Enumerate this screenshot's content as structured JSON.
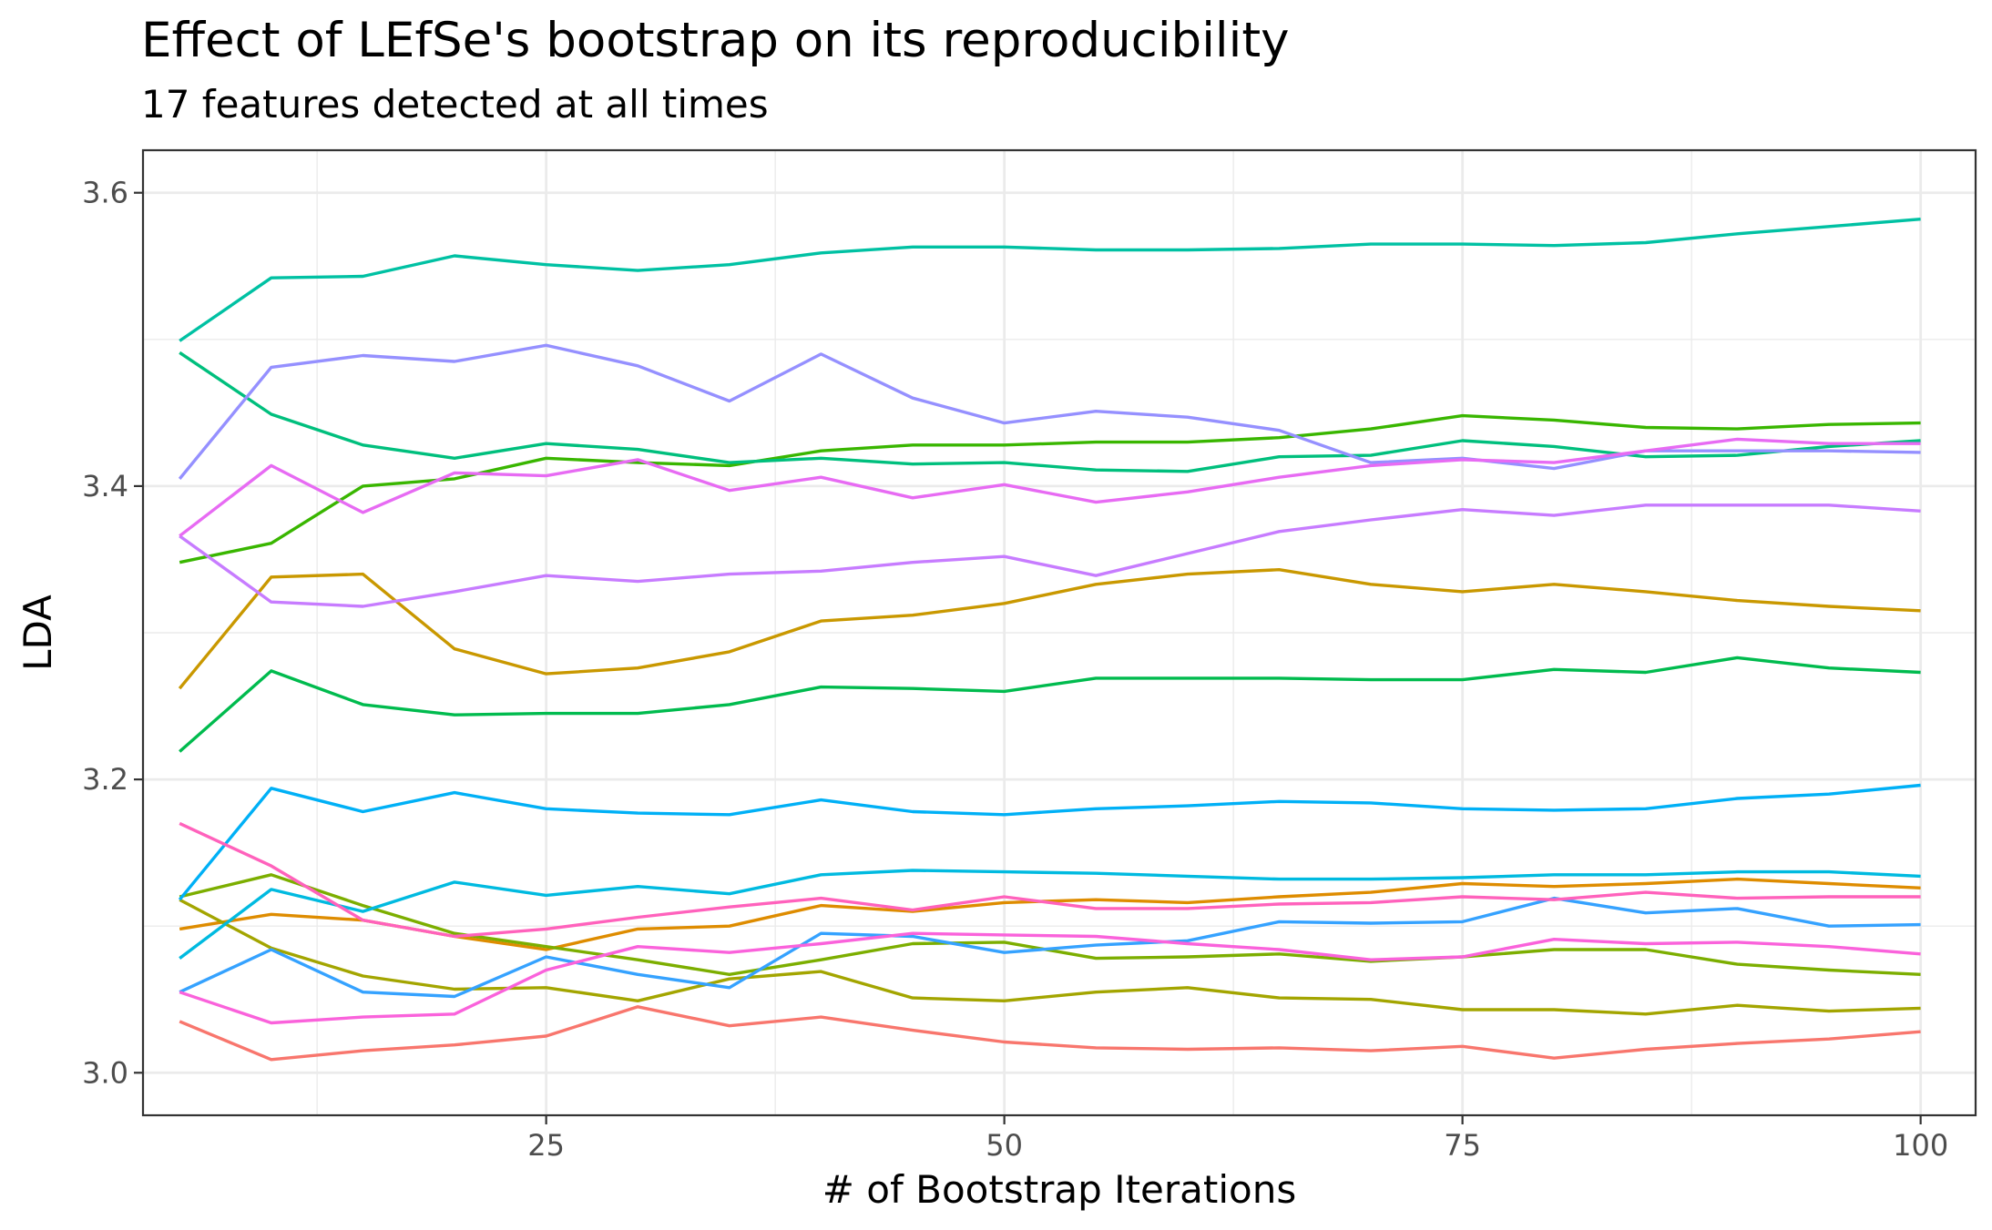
{
  "chart_data": {
    "type": "line",
    "title": "Effect of LEfSe's bootstrap on its reproducibility",
    "subtitle": "17 features detected at all times",
    "xlabel": "# of Bootstrap Iterations",
    "ylabel": "LDA",
    "xlim": [
      3,
      103
    ],
    "ylim": [
      2.971,
      3.629
    ],
    "x_ticks": [
      25,
      50,
      75,
      100
    ],
    "x_minor_ticks": [
      12.5,
      37.5,
      62.5,
      87.5
    ],
    "y_ticks": [
      3.0,
      3.2,
      3.4,
      3.6
    ],
    "y_minor_ticks": [
      3.1,
      3.3,
      3.5
    ],
    "x_tick_labels": [
      "25",
      "50",
      "75",
      "100"
    ],
    "y_tick_labels": [
      "3.0",
      "3.2",
      "3.4",
      "3.6"
    ],
    "grid": true,
    "legend": "none",
    "x": [
      5,
      10,
      15,
      20,
      25,
      30,
      35,
      40,
      45,
      50,
      55,
      60,
      65,
      70,
      75,
      80,
      85,
      90,
      95,
      100
    ],
    "series": [
      {
        "color": "#F8766D",
        "values": [
          3.035,
          3.009,
          3.015,
          3.019,
          3.025,
          3.045,
          3.032,
          3.038,
          3.029,
          3.021,
          3.017,
          3.016,
          3.017,
          3.015,
          3.018,
          3.01,
          3.016,
          3.02,
          3.023,
          3.028
        ]
      },
      {
        "color": "#DE8C00",
        "values": [
          3.098,
          3.108,
          3.104,
          3.093,
          3.084,
          3.098,
          3.1,
          3.114,
          3.11,
          3.116,
          3.118,
          3.116,
          3.12,
          3.123,
          3.129,
          3.127,
          3.129,
          3.132,
          3.129,
          3.126
        ]
      },
      {
        "color": "#C99800",
        "values": [
          3.262,
          3.338,
          3.34,
          3.289,
          3.272,
          3.276,
          3.287,
          3.308,
          3.312,
          3.32,
          3.333,
          3.34,
          3.343,
          3.333,
          3.328,
          3.333,
          3.328,
          3.322,
          3.318,
          3.315
        ]
      },
      {
        "color": "#A3A500",
        "values": [
          3.118,
          3.085,
          3.066,
          3.057,
          3.058,
          3.049,
          3.064,
          3.069,
          3.051,
          3.049,
          3.055,
          3.058,
          3.051,
          3.05,
          3.043,
          3.043,
          3.04,
          3.046,
          3.042,
          3.044
        ]
      },
      {
        "color": "#7CAE00",
        "values": [
          3.12,
          3.135,
          3.114,
          3.095,
          3.086,
          3.077,
          3.067,
          3.077,
          3.088,
          3.089,
          3.078,
          3.079,
          3.081,
          3.076,
          3.079,
          3.084,
          3.084,
          3.074,
          3.07,
          3.067
        ]
      },
      {
        "color": "#39B600",
        "values": [
          3.348,
          3.361,
          3.4,
          3.405,
          3.419,
          3.416,
          3.414,
          3.424,
          3.428,
          3.428,
          3.43,
          3.43,
          3.433,
          3.439,
          3.448,
          3.445,
          3.44,
          3.439,
          3.442,
          3.443
        ]
      },
      {
        "color": "#00BB4E",
        "values": [
          3.219,
          3.274,
          3.251,
          3.244,
          3.245,
          3.245,
          3.251,
          3.263,
          3.262,
          3.26,
          3.269,
          3.269,
          3.269,
          3.268,
          3.268,
          3.275,
          3.273,
          3.283,
          3.276,
          3.273
        ]
      },
      {
        "color": "#00BF7D",
        "values": [
          3.491,
          3.449,
          3.428,
          3.419,
          3.429,
          3.425,
          3.416,
          3.419,
          3.415,
          3.416,
          3.411,
          3.41,
          3.42,
          3.421,
          3.431,
          3.427,
          3.42,
          3.421,
          3.427,
          3.431
        ]
      },
      {
        "color": "#00C1A3",
        "values": [
          3.499,
          3.542,
          3.543,
          3.557,
          3.551,
          3.547,
          3.551,
          3.559,
          3.563,
          3.563,
          3.561,
          3.561,
          3.562,
          3.565,
          3.565,
          3.564,
          3.566,
          3.572,
          3.577,
          3.582
        ]
      },
      {
        "color": "#00BAE0",
        "values": [
          3.078,
          3.125,
          3.11,
          3.13,
          3.121,
          3.127,
          3.122,
          3.135,
          3.138,
          3.137,
          3.136,
          3.134,
          3.132,
          3.132,
          3.133,
          3.135,
          3.135,
          3.137,
          3.137,
          3.134
        ]
      },
      {
        "color": "#00B0F6",
        "values": [
          3.118,
          3.194,
          3.178,
          3.191,
          3.18,
          3.177,
          3.176,
          3.186,
          3.178,
          3.176,
          3.18,
          3.182,
          3.185,
          3.184,
          3.18,
          3.179,
          3.18,
          3.187,
          3.19,
          3.196
        ]
      },
      {
        "color": "#35A2FF",
        "values": [
          3.055,
          3.084,
          3.055,
          3.052,
          3.079,
          3.067,
          3.058,
          3.095,
          3.093,
          3.082,
          3.087,
          3.09,
          3.103,
          3.102,
          3.103,
          3.119,
          3.109,
          3.112,
          3.1,
          3.101
        ]
      },
      {
        "color": "#9590FF",
        "values": [
          3.405,
          3.481,
          3.489,
          3.485,
          3.496,
          3.482,
          3.458,
          3.49,
          3.46,
          3.443,
          3.451,
          3.447,
          3.438,
          3.416,
          3.419,
          3.412,
          3.424,
          3.424,
          3.424,
          3.423
        ]
      },
      {
        "color": "#C77CFF",
        "values": [
          3.366,
          3.321,
          3.318,
          3.328,
          3.339,
          3.335,
          3.34,
          3.342,
          3.348,
          3.352,
          3.339,
          3.354,
          3.369,
          3.377,
          3.384,
          3.38,
          3.387,
          3.387,
          3.387,
          3.383
        ]
      },
      {
        "color": "#E76BF3",
        "values": [
          3.366,
          3.414,
          3.382,
          3.409,
          3.407,
          3.418,
          3.397,
          3.406,
          3.392,
          3.401,
          3.389,
          3.396,
          3.406,
          3.414,
          3.418,
          3.416,
          3.424,
          3.432,
          3.429,
          3.429
        ]
      },
      {
        "color": "#FA62DB",
        "values": [
          3.055,
          3.034,
          3.038,
          3.04,
          3.07,
          3.086,
          3.082,
          3.088,
          3.095,
          3.094,
          3.093,
          3.088,
          3.084,
          3.077,
          3.079,
          3.091,
          3.088,
          3.089,
          3.086,
          3.081
        ]
      },
      {
        "color": "#FF62BC",
        "values": [
          3.17,
          3.141,
          3.104,
          3.093,
          3.098,
          3.106,
          3.113,
          3.119,
          3.111,
          3.12,
          3.112,
          3.112,
          3.115,
          3.116,
          3.12,
          3.118,
          3.123,
          3.119,
          3.12,
          3.12
        ]
      }
    ]
  }
}
